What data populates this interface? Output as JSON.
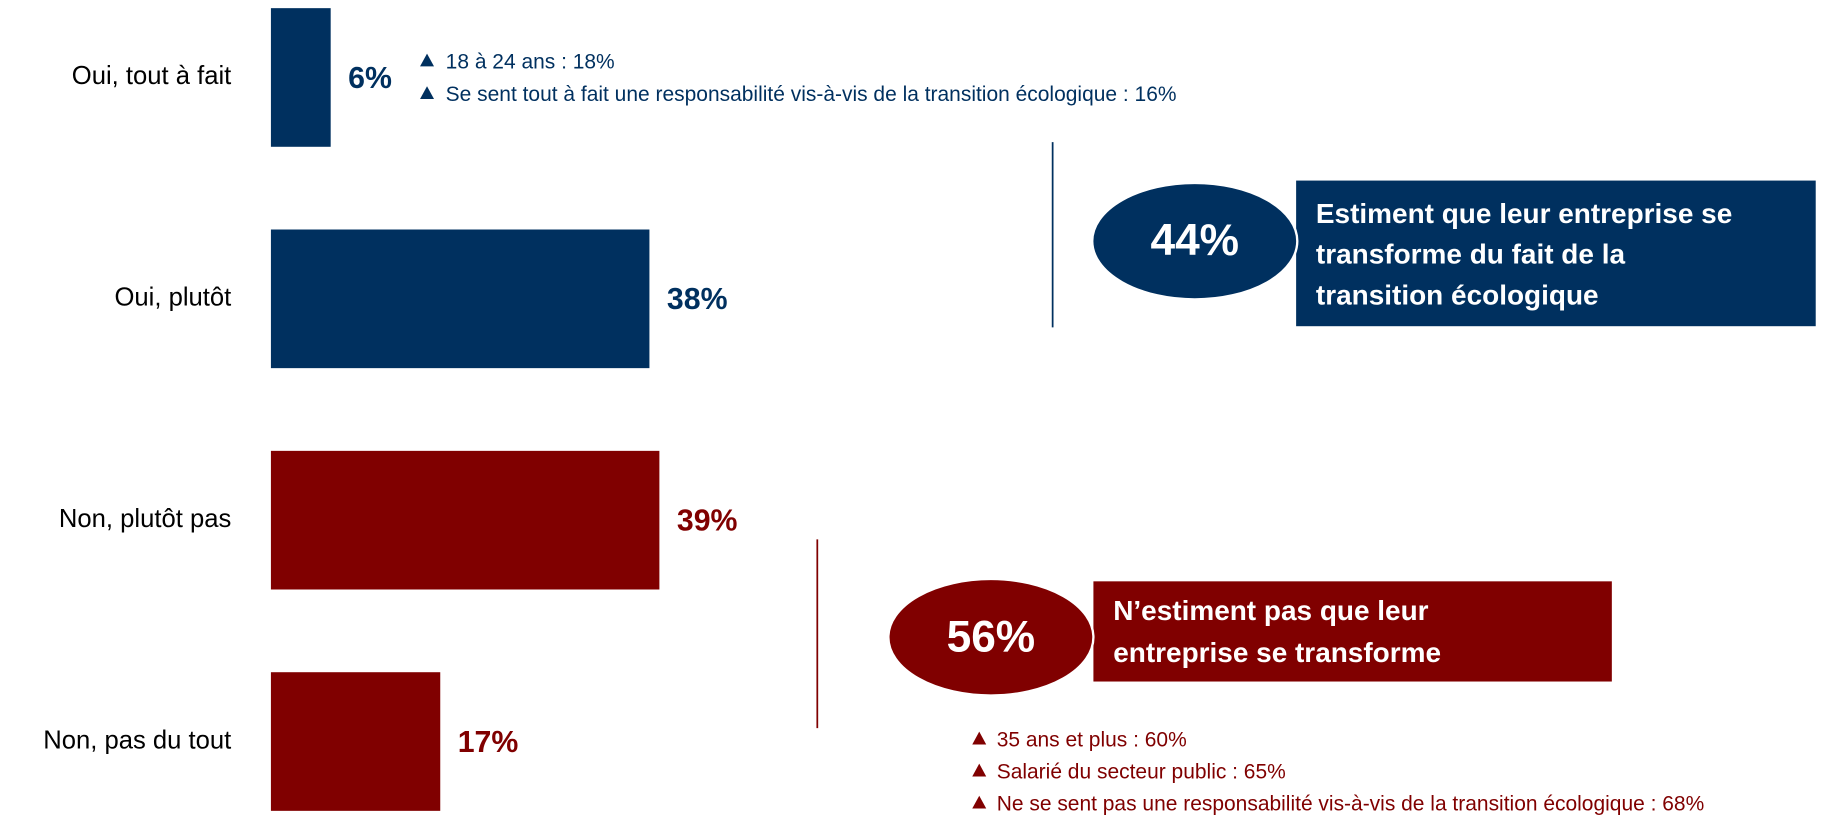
{
  "chart_data": {
    "type": "bar",
    "orientation": "horizontal",
    "categories": [
      "Oui, tout à fait",
      "Oui, plutôt",
      "Non, plutôt pas",
      "Non, pas du tout"
    ],
    "values": [
      6,
      38,
      39,
      17
    ],
    "value_labels": [
      "6%",
      "38%",
      "39%",
      "17%"
    ],
    "colors": [
      "#00305f",
      "#00305f",
      "#800000",
      "#800000"
    ],
    "bar_notes": [
      {
        "color": "#00305f",
        "lines": [
          "18 à 24 ans : 18%",
          "Se sent tout à fait une responsabilité vis-à-vis de la transition écologique : 16%"
        ]
      }
    ],
    "summaries": [
      {
        "label": "44%",
        "color": "#00305f",
        "lines": [
          "Estiment que leur entreprise se",
          "transforme du fait de la",
          "transition écologique"
        ]
      },
      {
        "label": "56%",
        "color": "#800000",
        "lines": [
          "N’estiment pas que leur",
          "entreprise se transforme"
        ],
        "notes": [
          "35 ans et plus : 60%",
          "Salarié du secteur public : 65%",
          "Ne se sent pas une responsabilité vis-à-vis de la transition écologique : 68%"
        ]
      }
    ]
  }
}
